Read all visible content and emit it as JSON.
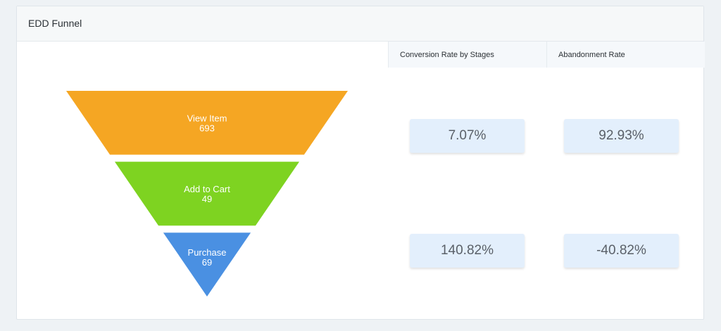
{
  "card": {
    "title": "EDD Funnel"
  },
  "columns": {
    "conversion_header": "Conversion Rate by Stages",
    "abandonment_header": "Abandonment Rate"
  },
  "chart_data": {
    "type": "funnel",
    "stages": [
      {
        "name": "View Item",
        "value": 693,
        "color": "#f5a623"
      },
      {
        "name": "Add to Cart",
        "value": 49,
        "color": "#7ed321"
      },
      {
        "name": "Purchase",
        "value": 69,
        "color": "#4a90e2"
      }
    ],
    "conversion_rates": [
      "7.07%",
      "140.82%"
    ],
    "abandonment_rates": [
      "92.93%",
      "-40.82%"
    ]
  }
}
